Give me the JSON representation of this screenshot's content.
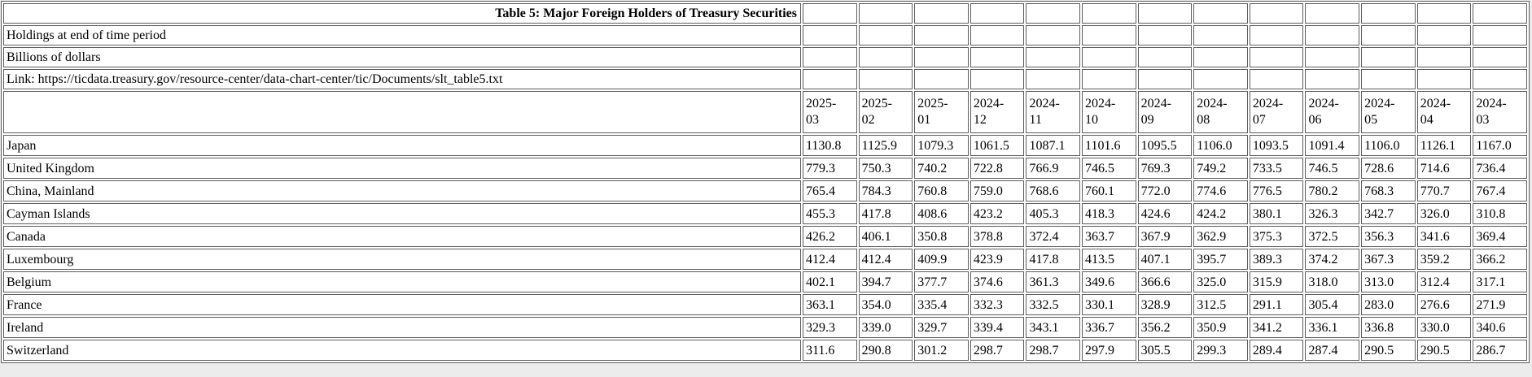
{
  "chart_data": {
    "type": "table",
    "title": "Table 5: Major Foreign Holders of Treasury Securities",
    "subtitle1": "Holdings at end of time period",
    "subtitle2": "Billions of dollars",
    "link_line": "Link: https://ticdata.treasury.gov/resource-center/data-chart-center/tic/Documents/slt_table5.txt",
    "columns": [
      "2025-03",
      "2025-02",
      "2025-01",
      "2024-12",
      "2024-11",
      "2024-10",
      "2024-09",
      "2024-08",
      "2024-07",
      "2024-06",
      "2024-05",
      "2024-04",
      "2024-03"
    ],
    "rows": [
      {
        "name": "Japan",
        "values": [
          "1130.8",
          "1125.9",
          "1079.3",
          "1061.5",
          "1087.1",
          "1101.6",
          "1095.5",
          "1106.0",
          "1093.5",
          "1091.4",
          "1106.0",
          "1126.1",
          "1167.0"
        ]
      },
      {
        "name": "United Kingdom",
        "values": [
          "779.3",
          "750.3",
          "740.2",
          "722.8",
          "766.9",
          "746.5",
          "769.3",
          "749.2",
          "733.5",
          "746.5",
          "728.6",
          "714.6",
          "736.4"
        ]
      },
      {
        "name": "China, Mainland",
        "values": [
          "765.4",
          "784.3",
          "760.8",
          "759.0",
          "768.6",
          "760.1",
          "772.0",
          "774.6",
          "776.5",
          "780.2",
          "768.3",
          "770.7",
          "767.4"
        ]
      },
      {
        "name": "Cayman Islands",
        "values": [
          "455.3",
          "417.8",
          "408.6",
          "423.2",
          "405.3",
          "418.3",
          "424.6",
          "424.2",
          "380.1",
          "326.3",
          "342.7",
          "326.0",
          "310.8"
        ]
      },
      {
        "name": "Canada",
        "values": [
          "426.2",
          "406.1",
          "350.8",
          "378.8",
          "372.4",
          "363.7",
          "367.9",
          "362.9",
          "375.3",
          "372.5",
          "356.3",
          "341.6",
          "369.4"
        ]
      },
      {
        "name": "Luxembourg",
        "values": [
          "412.4",
          "412.4",
          "409.9",
          "423.9",
          "417.8",
          "413.5",
          "407.1",
          "395.7",
          "389.3",
          "374.2",
          "367.3",
          "359.2",
          "366.2"
        ]
      },
      {
        "name": "Belgium",
        "values": [
          "402.1",
          "394.7",
          "377.7",
          "374.6",
          "361.3",
          "349.6",
          "366.6",
          "325.0",
          "315.9",
          "318.0",
          "313.0",
          "312.4",
          "317.1"
        ]
      },
      {
        "name": "France",
        "values": [
          "363.1",
          "354.0",
          "335.4",
          "332.3",
          "332.5",
          "330.1",
          "328.9",
          "312.5",
          "291.1",
          "305.4",
          "283.0",
          "276.6",
          "271.9"
        ]
      },
      {
        "name": "Ireland",
        "values": [
          "329.3",
          "339.0",
          "329.7",
          "339.4",
          "343.1",
          "336.7",
          "356.2",
          "350.9",
          "341.2",
          "336.1",
          "336.8",
          "330.0",
          "340.6"
        ]
      },
      {
        "name": "Switzerland",
        "values": [
          "311.6",
          "290.8",
          "301.2",
          "298.7",
          "298.7",
          "297.9",
          "305.5",
          "299.3",
          "289.4",
          "287.4",
          "290.5",
          "290.5",
          "286.7"
        ]
      }
    ],
    "layout": {
      "grid": "on",
      "value_alignment": "left",
      "num_columns": 13,
      "num_rows": 10
    }
  },
  "colors": {
    "page_bg": "#ececec",
    "cell_bg": "#ffffff",
    "border": "#5e5e5e",
    "text": "#000000"
  }
}
